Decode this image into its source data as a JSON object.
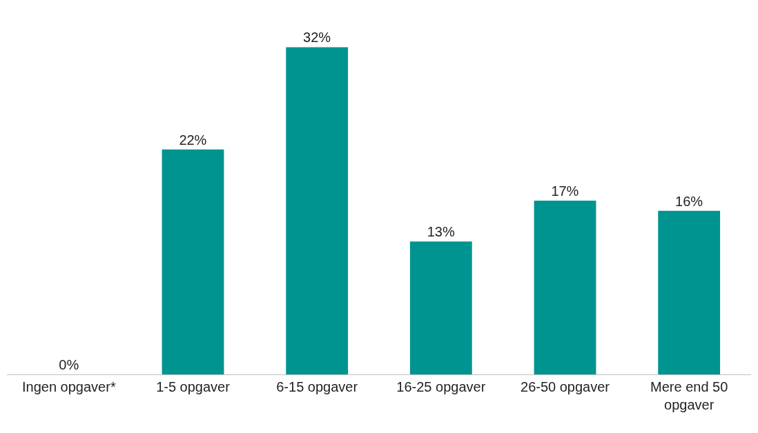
{
  "chart_data": {
    "type": "bar",
    "categories": [
      "Ingen opgaver*",
      "1-5 opgaver",
      "6-15 opgaver",
      "16-25 opgaver",
      "26-50 opgaver",
      "Mere end 50 opgaver"
    ],
    "values": [
      0,
      22,
      32,
      13,
      17,
      16
    ],
    "value_labels": [
      "0%",
      "22%",
      "32%",
      "13%",
      "17%",
      "16%"
    ],
    "color": "#009490",
    "legend": false
  }
}
